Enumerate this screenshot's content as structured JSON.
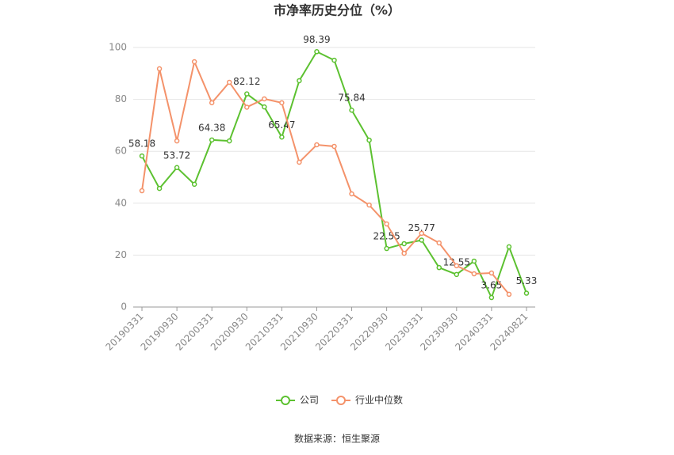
{
  "chart_data": {
    "type": "line",
    "title": "市净率历史分位（%）",
    "source": "数据来源：恒生聚源",
    "categories": [
      "20190331",
      null,
      "20190930",
      null,
      "20200331",
      null,
      "20200930",
      null,
      "20210331",
      null,
      "20210930",
      null,
      "20220331",
      null,
      "20220930",
      null,
      "20230331",
      null,
      "20230930",
      null,
      "20240331",
      null,
      "20240821"
    ],
    "series": [
      {
        "name": "公司",
        "color": "#5cc130",
        "values": [
          58.18,
          45.7,
          53.72,
          47.3,
          64.38,
          64.0,
          82.12,
          77.1,
          65.47,
          87.2,
          98.39,
          95.1,
          75.84,
          64.3,
          22.55,
          24.4,
          25.77,
          15.2,
          12.55,
          17.7,
          3.65,
          23.2,
          5.33
        ]
      },
      {
        "name": "行业中位数",
        "color": "#f4926a",
        "values": [
          44.8,
          91.8,
          64.0,
          94.5,
          78.7,
          86.6,
          77.0,
          80.2,
          78.7,
          55.8,
          62.5,
          61.9,
          43.6,
          39.3,
          32.0,
          20.7,
          28.4,
          24.7,
          15.9,
          12.8,
          13.1,
          4.9,
          null
        ]
      }
    ],
    "ylim": [
      0,
      100
    ],
    "yticks": [
      0,
      20,
      40,
      60,
      80,
      100
    ],
    "grid": true,
    "legend": "bottom"
  }
}
